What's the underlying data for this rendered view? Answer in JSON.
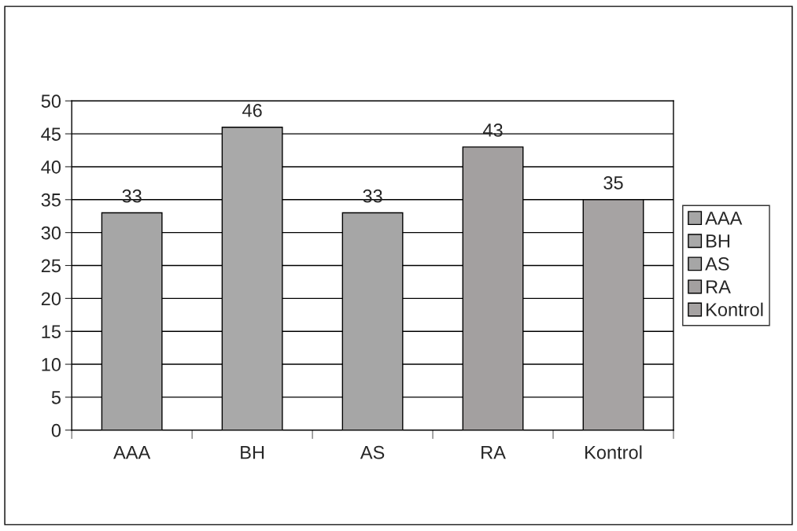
{
  "chart_data": {
    "type": "bar",
    "categories": [
      "AAA",
      "BH",
      "AS",
      "RA",
      "Kontrol"
    ],
    "series": [
      {
        "name": "AAA",
        "color": "#a6a6a6",
        "values": [
          33,
          null,
          null,
          null,
          null
        ]
      },
      {
        "name": "BH",
        "color": "#a9a9a9",
        "values": [
          null,
          46,
          null,
          null,
          null
        ]
      },
      {
        "name": "AS",
        "color": "#a6a6a6",
        "values": [
          null,
          null,
          33,
          null,
          null
        ]
      },
      {
        "name": "RA",
        "color": "#a3a0a0",
        "values": [
          null,
          null,
          null,
          43,
          null
        ]
      },
      {
        "name": "Kontrol",
        "color": "#a6a3a3",
        "values": [
          null,
          null,
          null,
          null,
          35
        ]
      }
    ],
    "ylim": [
      0,
      50
    ],
    "yticks": [
      0,
      5,
      10,
      15,
      20,
      25,
      30,
      35,
      40,
      45,
      50
    ],
    "grid": "y",
    "legend": "right",
    "data_labels": true
  }
}
